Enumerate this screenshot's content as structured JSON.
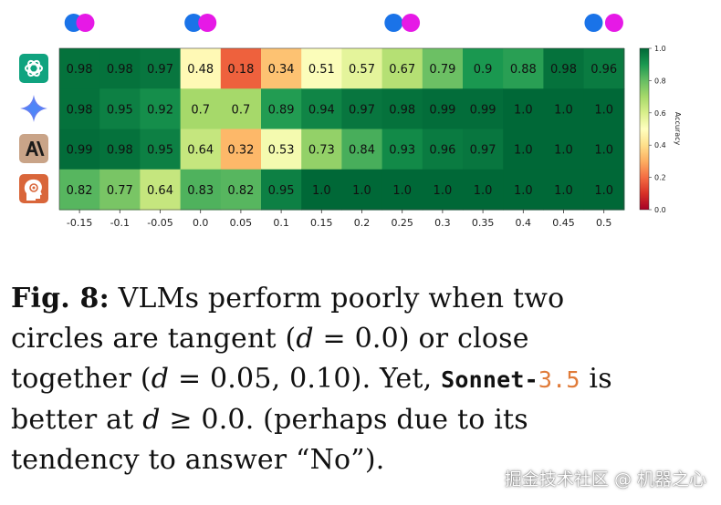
{
  "chart_data": {
    "type": "heatmap",
    "x": [
      "-0.15",
      "-0.1",
      "-0.05",
      "0.0",
      "0.05",
      "0.1",
      "0.15",
      "0.2",
      "0.25",
      "0.3",
      "0.35",
      "0.4",
      "0.45",
      "0.5"
    ],
    "rows": [
      {
        "model_icon": "chatgpt-icon",
        "values": [
          "0.98",
          "0.98",
          "0.97",
          "0.48",
          "0.18",
          "0.34",
          "0.51",
          "0.57",
          "0.67",
          "0.79",
          "0.9",
          "0.88",
          "0.98",
          "0.96"
        ]
      },
      {
        "model_icon": "gemini-icon",
        "values": [
          "0.98",
          "0.95",
          "0.92",
          "0.7",
          "0.7",
          "0.89",
          "0.94",
          "0.97",
          "0.98",
          "0.99",
          "0.99",
          "1.0",
          "1.0",
          "1.0"
        ]
      },
      {
        "model_icon": "anthropic-icon",
        "values": [
          "0.99",
          "0.98",
          "0.95",
          "0.64",
          "0.32",
          "0.53",
          "0.73",
          "0.84",
          "0.93",
          "0.96",
          "0.97",
          "1.0",
          "1.0",
          "1.0"
        ]
      },
      {
        "model_icon": "human-icon",
        "values": [
          "0.82",
          "0.77",
          "0.64",
          "0.83",
          "0.82",
          "0.95",
          "1.0",
          "1.0",
          "1.0",
          "1.0",
          "1.0",
          "1.0",
          "1.0",
          "1.0"
        ]
      }
    ],
    "colorbar": {
      "label": "Accuracy",
      "ticks": [
        "0.0",
        "0.2",
        "0.4",
        "0.6",
        "0.8",
        "1.0"
      ],
      "range": [
        0,
        1
      ],
      "colormap": "RdYlGn"
    },
    "circle_examples": [
      {
        "at": "-0.15",
        "colors": [
          "#1a73e8",
          "#e619e6"
        ]
      },
      {
        "at": "0.0",
        "colors": [
          "#1a73e8",
          "#e619e6"
        ]
      },
      {
        "at": "0.25",
        "colors": [
          "#1a73e8",
          "#e619e6"
        ]
      },
      {
        "at": "0.5",
        "colors": [
          "#1a73e8",
          "#e619e6"
        ]
      }
    ]
  },
  "caption": {
    "fig_label": "Fig. 8:",
    "t1": " VLMs perform poorly when two circles are tangent (",
    "d1": "d",
    "t2": " = 0.0) or close together (",
    "d2": "d",
    "t3": " = 0.05, 0.10). Yet, ",
    "model_name": "Sonnet-",
    "model_version": "3.5",
    "t4": " is better at ",
    "d3": "d",
    "t5": " ≥ 0.0. (perhaps due to its tendency to answer “No”)."
  },
  "watermark": "掘金技术社区 @ 机器之心"
}
